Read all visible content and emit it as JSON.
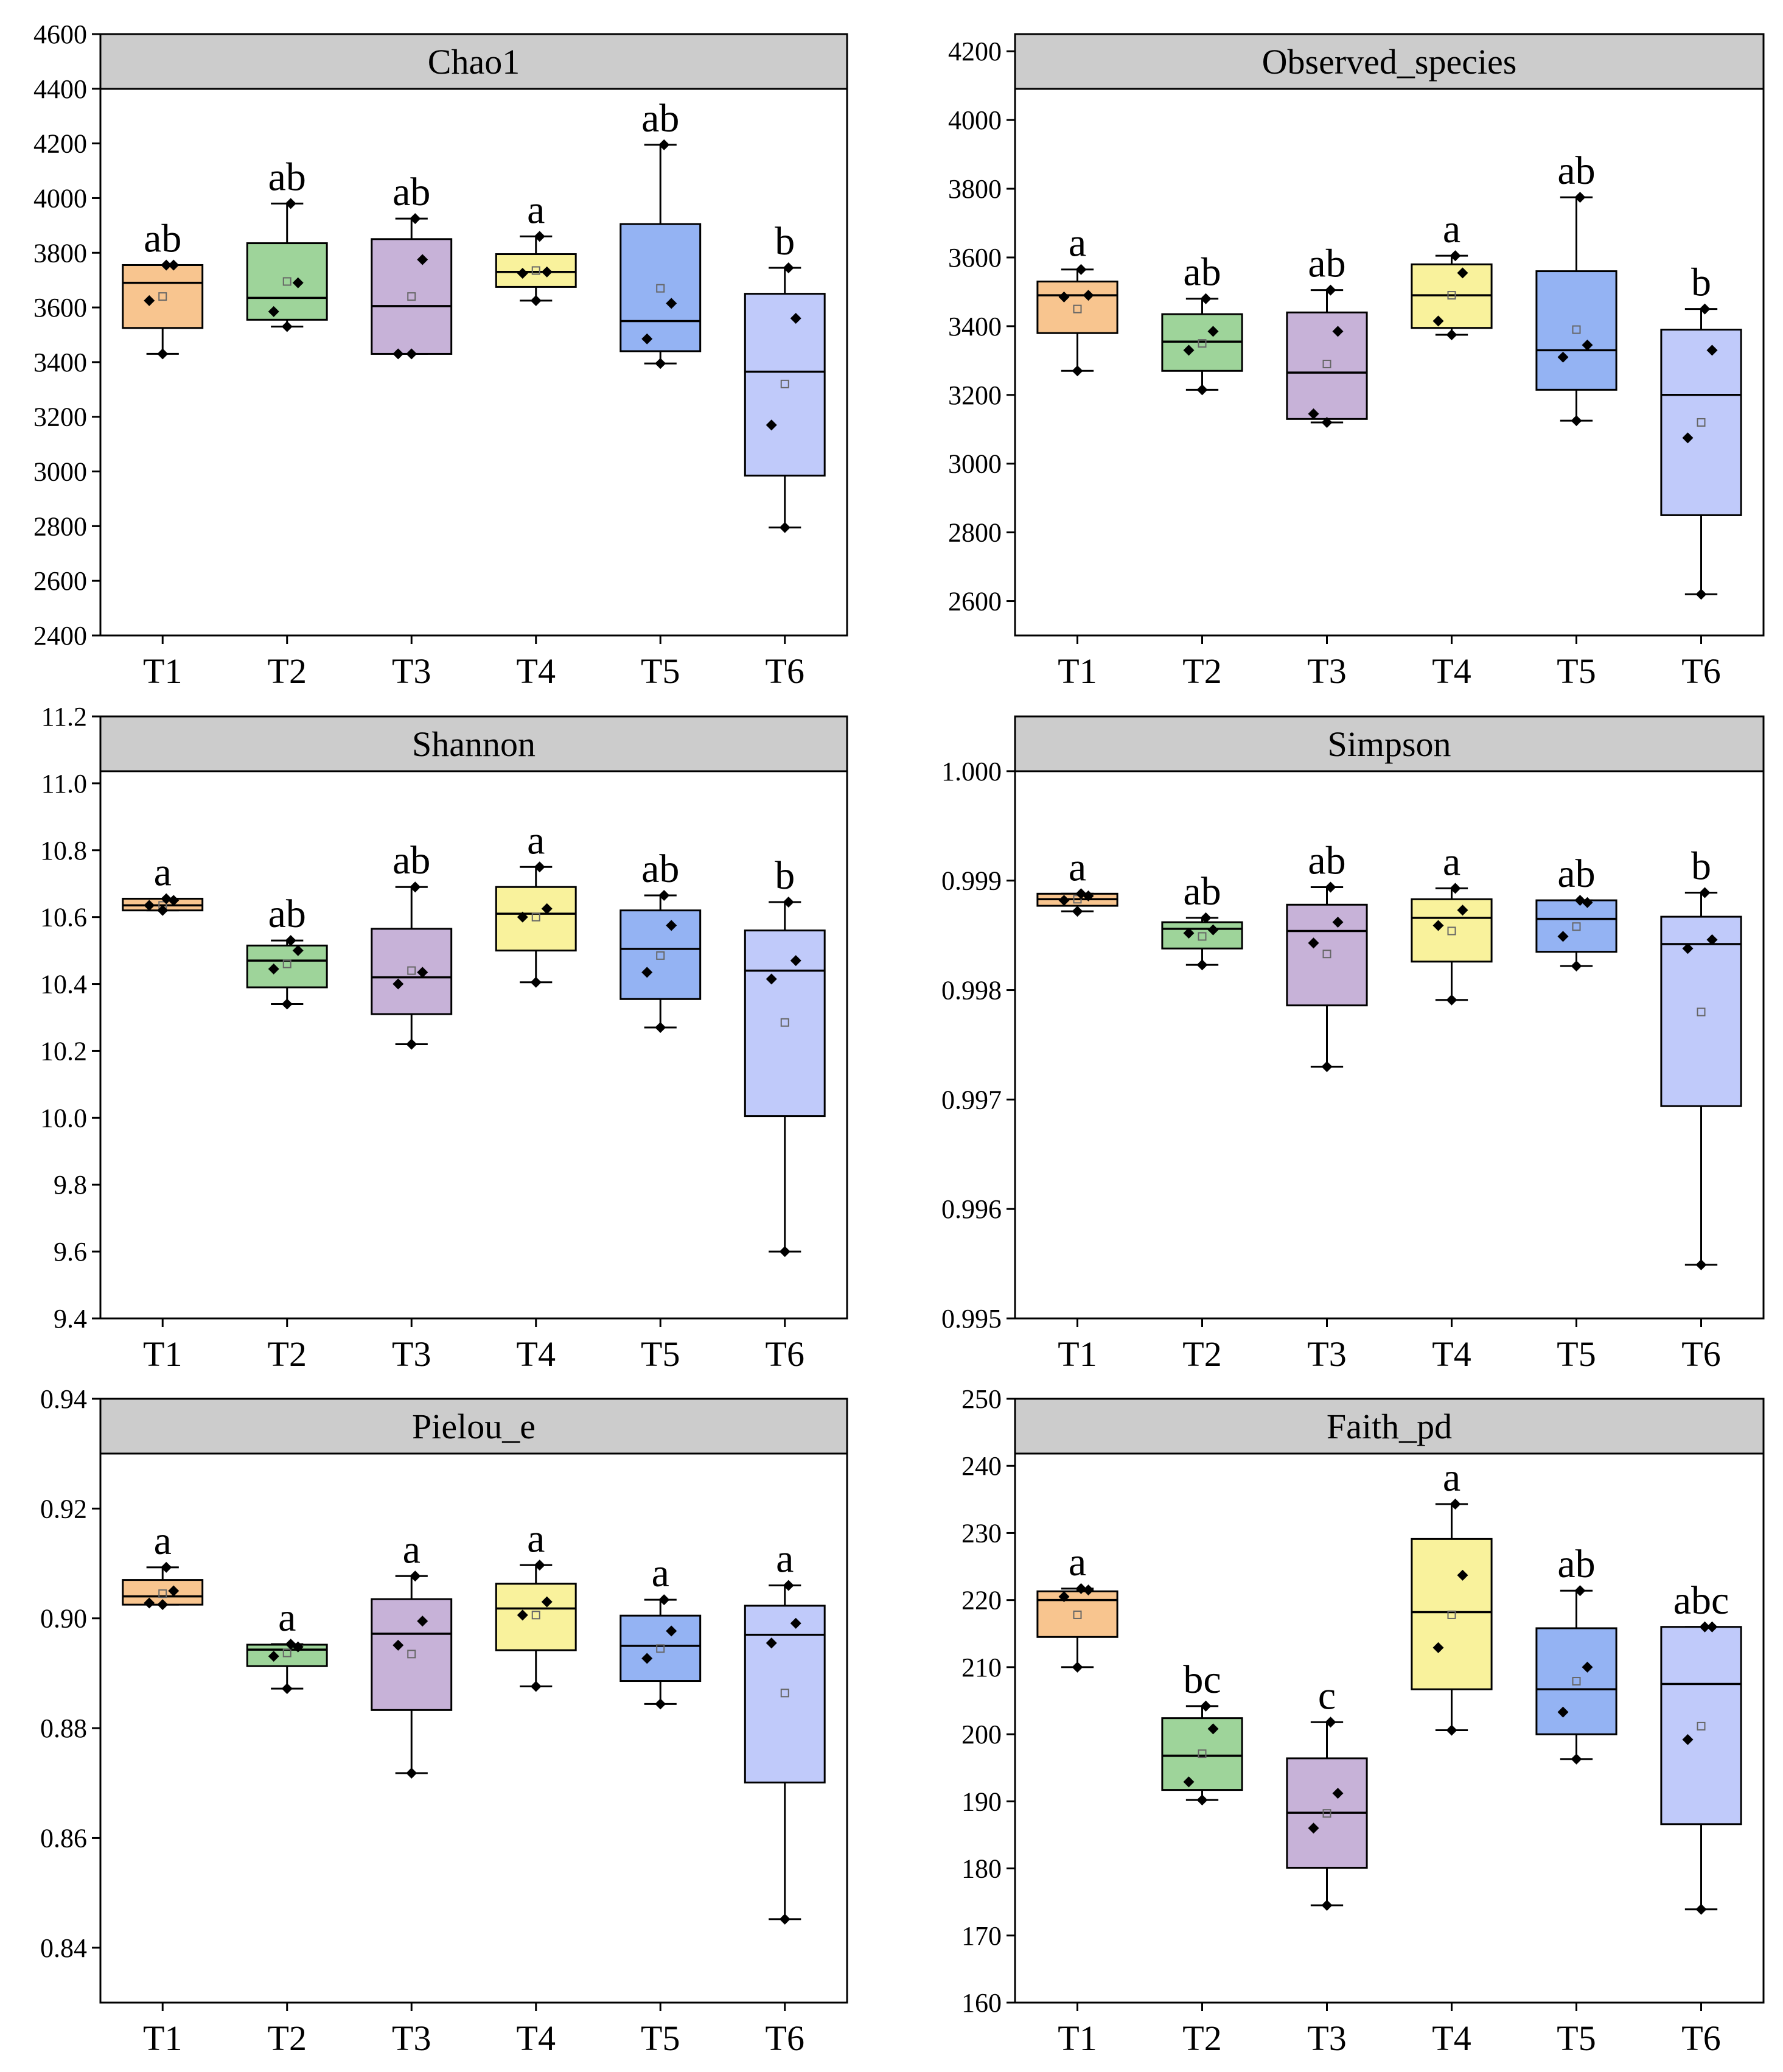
{
  "figure": {
    "categories": [
      "T1",
      "T2",
      "T3",
      "T4",
      "T5",
      "T6"
    ],
    "colors": {
      "T1": "#f8c58f",
      "T2": "#9ed49a",
      "T3": "#c7b2d8",
      "T4": "#f9f29c",
      "T5": "#94b3f3",
      "T6": "#c0cafa"
    },
    "header_fill": "#cccccc"
  },
  "chart_data": [
    {
      "type": "box",
      "title": "Chao1",
      "ylim": [
        2400,
        4600
      ],
      "yticks": [
        2400,
        2600,
        2800,
        3000,
        3200,
        3400,
        3600,
        3800,
        4000,
        4200,
        4400,
        4600
      ],
      "tick_labels": [
        "2400",
        "2600",
        "2800",
        "3000",
        "3200",
        "3400",
        "3600",
        "3800",
        "4000",
        "4200",
        "4400",
        "4600"
      ],
      "groups": [
        {
          "name": "T1",
          "min": 3430,
          "q1": 3525,
          "median": 3690,
          "q3": 3755,
          "max": 3755,
          "mean": 3640,
          "points": [
            3430,
            3625,
            3755,
            3755
          ],
          "letter": "ab"
        },
        {
          "name": "T2",
          "min": 3530,
          "q1": 3555,
          "median": 3635,
          "q3": 3835,
          "max": 3980,
          "mean": 3695,
          "points": [
            3530,
            3585,
            3690,
            3980
          ],
          "letter": "ab"
        },
        {
          "name": "T3",
          "min": 3430,
          "q1": 3430,
          "median": 3605,
          "q3": 3850,
          "max": 3925,
          "mean": 3640,
          "points": [
            3430,
            3430,
            3775,
            3925
          ],
          "letter": "ab"
        },
        {
          "name": "T4",
          "min": 3625,
          "q1": 3675,
          "median": 3730,
          "q3": 3795,
          "max": 3860,
          "mean": 3735,
          "points": [
            3625,
            3725,
            3730,
            3860
          ],
          "letter": "a"
        },
        {
          "name": "T5",
          "min": 3395,
          "q1": 3440,
          "median": 3550,
          "q3": 3905,
          "max": 4195,
          "mean": 3670,
          "points": [
            3395,
            3485,
            3615,
            4195
          ],
          "letter": "ab"
        },
        {
          "name": "T6",
          "min": 2795,
          "q1": 2985,
          "median": 3365,
          "q3": 3650,
          "max": 3745,
          "mean": 3320,
          "points": [
            2795,
            3170,
            3560,
            3745
          ],
          "letter": "b"
        }
      ]
    },
    {
      "type": "box",
      "title": "Observed_species",
      "ylim": [
        2500,
        4250
      ],
      "yticks": [
        2600,
        2800,
        3000,
        3200,
        3400,
        3600,
        3800,
        4000,
        4200
      ],
      "tick_labels": [
        "2600",
        "2800",
        "3000",
        "3200",
        "3400",
        "3600",
        "3800",
        "4000",
        "4200"
      ],
      "groups": [
        {
          "name": "T1",
          "min": 3270,
          "q1": 3380,
          "median": 3490,
          "q3": 3530,
          "max": 3565,
          "mean": 3450,
          "points": [
            3270,
            3485,
            3490,
            3565
          ],
          "letter": "a"
        },
        {
          "name": "T2",
          "min": 3215,
          "q1": 3270,
          "median": 3355,
          "q3": 3435,
          "max": 3480,
          "mean": 3350,
          "points": [
            3215,
            3330,
            3385,
            3480
          ],
          "letter": "ab"
        },
        {
          "name": "T3",
          "min": 3120,
          "q1": 3130,
          "median": 3265,
          "q3": 3440,
          "max": 3505,
          "mean": 3290,
          "points": [
            3120,
            3145,
            3385,
            3505
          ],
          "letter": "ab"
        },
        {
          "name": "T4",
          "min": 3375,
          "q1": 3395,
          "median": 3490,
          "q3": 3580,
          "max": 3605,
          "mean": 3490,
          "points": [
            3375,
            3415,
            3555,
            3605
          ],
          "letter": "a"
        },
        {
          "name": "T5",
          "min": 3125,
          "q1": 3215,
          "median": 3330,
          "q3": 3560,
          "max": 3775,
          "mean": 3390,
          "points": [
            3125,
            3310,
            3345,
            3775
          ],
          "letter": "ab"
        },
        {
          "name": "T6",
          "min": 2620,
          "q1": 2850,
          "median": 3200,
          "q3": 3390,
          "max": 3450,
          "mean": 3120,
          "points": [
            2620,
            3075,
            3330,
            3450
          ],
          "letter": "b"
        }
      ]
    },
    {
      "type": "box",
      "title": "Shannon",
      "ylim": [
        9.4,
        11.2
      ],
      "yticks": [
        9.4,
        9.6,
        9.8,
        10.0,
        10.2,
        10.4,
        10.6,
        10.8,
        11.0,
        11.2
      ],
      "tick_labels": [
        "9.4",
        "9.6",
        "9.8",
        "10.0",
        "10.2",
        "10.4",
        "10.6",
        "10.8",
        "11.0",
        "11.2"
      ],
      "groups": [
        {
          "name": "T1",
          "min": 10.62,
          "q1": 10.62,
          "median": 10.635,
          "q3": 10.655,
          "max": 10.655,
          "mean": 10.635,
          "points": [
            10.62,
            10.635,
            10.65,
            10.655
          ],
          "letter": "a"
        },
        {
          "name": "T2",
          "min": 10.34,
          "q1": 10.39,
          "median": 10.47,
          "q3": 10.515,
          "max": 10.53,
          "mean": 10.46,
          "points": [
            10.34,
            10.445,
            10.5,
            10.53
          ],
          "letter": "ab"
        },
        {
          "name": "T3",
          "min": 10.22,
          "q1": 10.31,
          "median": 10.42,
          "q3": 10.565,
          "max": 10.69,
          "mean": 10.44,
          "points": [
            10.22,
            10.4,
            10.435,
            10.69
          ],
          "letter": "ab"
        },
        {
          "name": "T4",
          "min": 10.405,
          "q1": 10.5,
          "median": 10.61,
          "q3": 10.69,
          "max": 10.75,
          "mean": 10.6,
          "points": [
            10.405,
            10.6,
            10.625,
            10.75
          ],
          "letter": "a"
        },
        {
          "name": "T5",
          "min": 10.27,
          "q1": 10.355,
          "median": 10.505,
          "q3": 10.62,
          "max": 10.665,
          "mean": 10.485,
          "points": [
            10.27,
            10.435,
            10.575,
            10.665
          ],
          "letter": "ab"
        },
        {
          "name": "T6",
          "min": 9.6,
          "q1": 10.005,
          "median": 10.44,
          "q3": 10.56,
          "max": 10.645,
          "mean": 10.285,
          "points": [
            9.6,
            10.415,
            10.47,
            10.645
          ],
          "letter": "b"
        }
      ]
    },
    {
      "type": "box",
      "title": "Simpson",
      "ylim": [
        0.995,
        1.0005
      ],
      "yticks": [
        0.995,
        0.996,
        0.997,
        0.998,
        0.999,
        1.0
      ],
      "tick_labels": [
        "0.995",
        "0.996",
        "0.997",
        "0.998",
        "0.999",
        "1.000"
      ],
      "groups": [
        {
          "name": "T1",
          "min": 0.99872,
          "q1": 0.99877,
          "median": 0.99883,
          "q3": 0.99888,
          "max": 0.99888,
          "mean": 0.99883,
          "points": [
            0.99872,
            0.99882,
            0.99886,
            0.99888
          ],
          "letter": "a"
        },
        {
          "name": "T2",
          "min": 0.99823,
          "q1": 0.99838,
          "median": 0.99856,
          "q3": 0.99862,
          "max": 0.99866,
          "mean": 0.99849,
          "points": [
            0.99823,
            0.99852,
            0.99855,
            0.99866
          ],
          "letter": "ab"
        },
        {
          "name": "T3",
          "min": 0.9973,
          "q1": 0.99786,
          "median": 0.99854,
          "q3": 0.99878,
          "max": 0.99894,
          "mean": 0.99833,
          "points": [
            0.9973,
            0.99843,
            0.99862,
            0.99894
          ],
          "letter": "ab"
        },
        {
          "name": "T4",
          "min": 0.99791,
          "q1": 0.99826,
          "median": 0.99866,
          "q3": 0.99883,
          "max": 0.99893,
          "mean": 0.99854,
          "points": [
            0.99791,
            0.99859,
            0.99873,
            0.99893
          ],
          "letter": "a"
        },
        {
          "name": "T5",
          "min": 0.99822,
          "q1": 0.99835,
          "median": 0.99865,
          "q3": 0.99882,
          "max": 0.99882,
          "mean": 0.99858,
          "points": [
            0.99822,
            0.99849,
            0.9988,
            0.99882
          ],
          "letter": "ab"
        },
        {
          "name": "T6",
          "min": 0.99549,
          "q1": 0.99694,
          "median": 0.99842,
          "q3": 0.99867,
          "max": 0.99889,
          "mean": 0.9978,
          "points": [
            0.99549,
            0.99838,
            0.99846,
            0.99889
          ],
          "letter": "b"
        }
      ]
    },
    {
      "type": "box",
      "title": "Pielou_e",
      "ylim": [
        0.83,
        0.94
      ],
      "yticks": [
        0.84,
        0.86,
        0.88,
        0.9,
        0.92,
        0.94
      ],
      "tick_labels": [
        "0.84",
        "0.86",
        "0.88",
        "0.90",
        "0.92",
        "0.94"
      ],
      "groups": [
        {
          "name": "T1",
          "min": 0.9025,
          "q1": 0.9025,
          "median": 0.904,
          "q3": 0.907,
          "max": 0.9093,
          "mean": 0.9045,
          "points": [
            0.9025,
            0.9028,
            0.905,
            0.9093
          ],
          "letter": "a"
        },
        {
          "name": "T2",
          "min": 0.8872,
          "q1": 0.8913,
          "median": 0.8943,
          "q3": 0.8952,
          "max": 0.8953,
          "mean": 0.8937,
          "points": [
            0.8872,
            0.8931,
            0.8948,
            0.8953
          ],
          "letter": "a"
        },
        {
          "name": "T3",
          "min": 0.8718,
          "q1": 0.8833,
          "median": 0.8972,
          "q3": 0.9035,
          "max": 0.9077,
          "mean": 0.8935,
          "points": [
            0.8718,
            0.8951,
            0.8995,
            0.9077
          ],
          "letter": "a"
        },
        {
          "name": "T4",
          "min": 0.8876,
          "q1": 0.8942,
          "median": 0.9018,
          "q3": 0.9063,
          "max": 0.9097,
          "mean": 0.9006,
          "points": [
            0.8876,
            0.9006,
            0.903,
            0.9097
          ],
          "letter": "a"
        },
        {
          "name": "T5",
          "min": 0.8844,
          "q1": 0.8886,
          "median": 0.895,
          "q3": 0.9005,
          "max": 0.9034,
          "mean": 0.8945,
          "points": [
            0.8844,
            0.8927,
            0.8977,
            0.9034
          ],
          "letter": "a"
        },
        {
          "name": "T6",
          "min": 0.8452,
          "q1": 0.8701,
          "median": 0.897,
          "q3": 0.9023,
          "max": 0.906,
          "mean": 0.8864,
          "points": [
            0.8452,
            0.8955,
            0.8991,
            0.906
          ],
          "letter": "a"
        }
      ]
    },
    {
      "type": "box",
      "title": "Faith_pd",
      "ylim": [
        160,
        250
      ],
      "yticks": [
        160,
        170,
        180,
        190,
        200,
        210,
        220,
        230,
        240,
        250
      ],
      "tick_labels": [
        "160",
        "170",
        "180",
        "190",
        "200",
        "210",
        "220",
        "230",
        "240",
        "250"
      ],
      "groups": [
        {
          "name": "T1",
          "min": 210,
          "q1": 214.5,
          "median": 220,
          "q3": 221.3,
          "max": 221.7,
          "mean": 217.8,
          "points": [
            210,
            220.5,
            221.5,
            221.7
          ],
          "letter": "a"
        },
        {
          "name": "T2",
          "min": 190.2,
          "q1": 191.7,
          "median": 196.8,
          "q3": 202.4,
          "max": 204.2,
          "mean": 197.1,
          "points": [
            190.2,
            192.9,
            200.8,
            204.2
          ],
          "letter": "bc"
        },
        {
          "name": "T3",
          "min": 174.5,
          "q1": 180.1,
          "median": 188.3,
          "q3": 196.4,
          "max": 201.8,
          "mean": 188.2,
          "points": [
            174.5,
            186,
            191.2,
            201.8
          ],
          "letter": "c"
        },
        {
          "name": "T4",
          "min": 200.6,
          "q1": 206.7,
          "median": 218.2,
          "q3": 229.1,
          "max": 234.3,
          "mean": 217.8,
          "points": [
            200.6,
            212.9,
            223.7,
            234.3
          ],
          "letter": "a"
        },
        {
          "name": "T5",
          "min": 196.3,
          "q1": 200,
          "median": 206.7,
          "q3": 215.8,
          "max": 221.4,
          "mean": 207.9,
          "points": [
            196.3,
            203.3,
            210,
            221.4
          ],
          "letter": "ab"
        },
        {
          "name": "T6",
          "min": 173.9,
          "q1": 186.6,
          "median": 207.5,
          "q3": 216,
          "max": 216,
          "mean": 201.2,
          "points": [
            173.9,
            199.2,
            216,
            216
          ],
          "letter": "abc"
        }
      ]
    }
  ]
}
